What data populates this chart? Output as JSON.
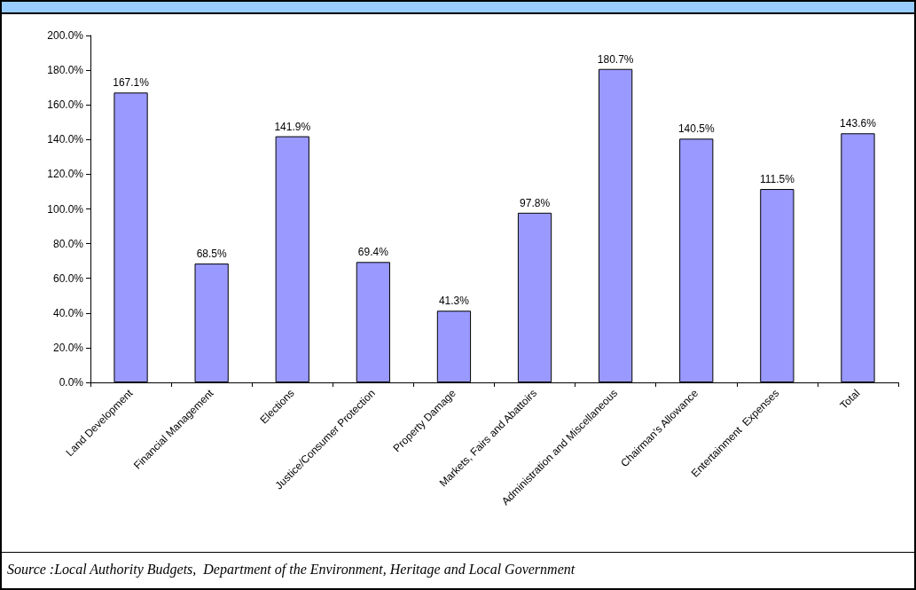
{
  "chart_data": {
    "type": "bar",
    "categories": [
      "Land Development",
      "Financial Management",
      "Elections",
      "Justice/Consumer Protection",
      "Property Damage",
      "Markets, Fairs and Abattoirs",
      "Administration and Miscellaneous",
      "Chairman's Allowance",
      "Entertainment  Expenses",
      "Total"
    ],
    "values": [
      167.1,
      68.5,
      141.9,
      69.4,
      41.3,
      97.8,
      180.7,
      140.5,
      111.5,
      143.6
    ],
    "value_labels": [
      "167.1%",
      "68.5%",
      "141.9%",
      "69.4%",
      "41.3%",
      "97.8%",
      "180.7%",
      "140.5%",
      "111.5%",
      "143.6%"
    ],
    "color": "#9999ff",
    "ylim": [
      0,
      200
    ],
    "yticks": [
      {
        "value": 0,
        "label": "0.0%"
      },
      {
        "value": 20,
        "label": "20.0%"
      },
      {
        "value": 40,
        "label": "40.0%"
      },
      {
        "value": 60,
        "label": "60.0%"
      },
      {
        "value": 80,
        "label": "80.0%"
      },
      {
        "value": 100,
        "label": "100.0%"
      },
      {
        "value": 120,
        "label": "120.0%"
      },
      {
        "value": 140,
        "label": "140.0%"
      },
      {
        "value": 160,
        "label": "160.0%"
      },
      {
        "value": 180,
        "label": "180.0%"
      },
      {
        "value": 200,
        "label": "200.0%"
      }
    ],
    "annotations": [
      "Source :Local Authority Budgets,  Department of the Environment, Heritage and Local Government"
    ]
  }
}
